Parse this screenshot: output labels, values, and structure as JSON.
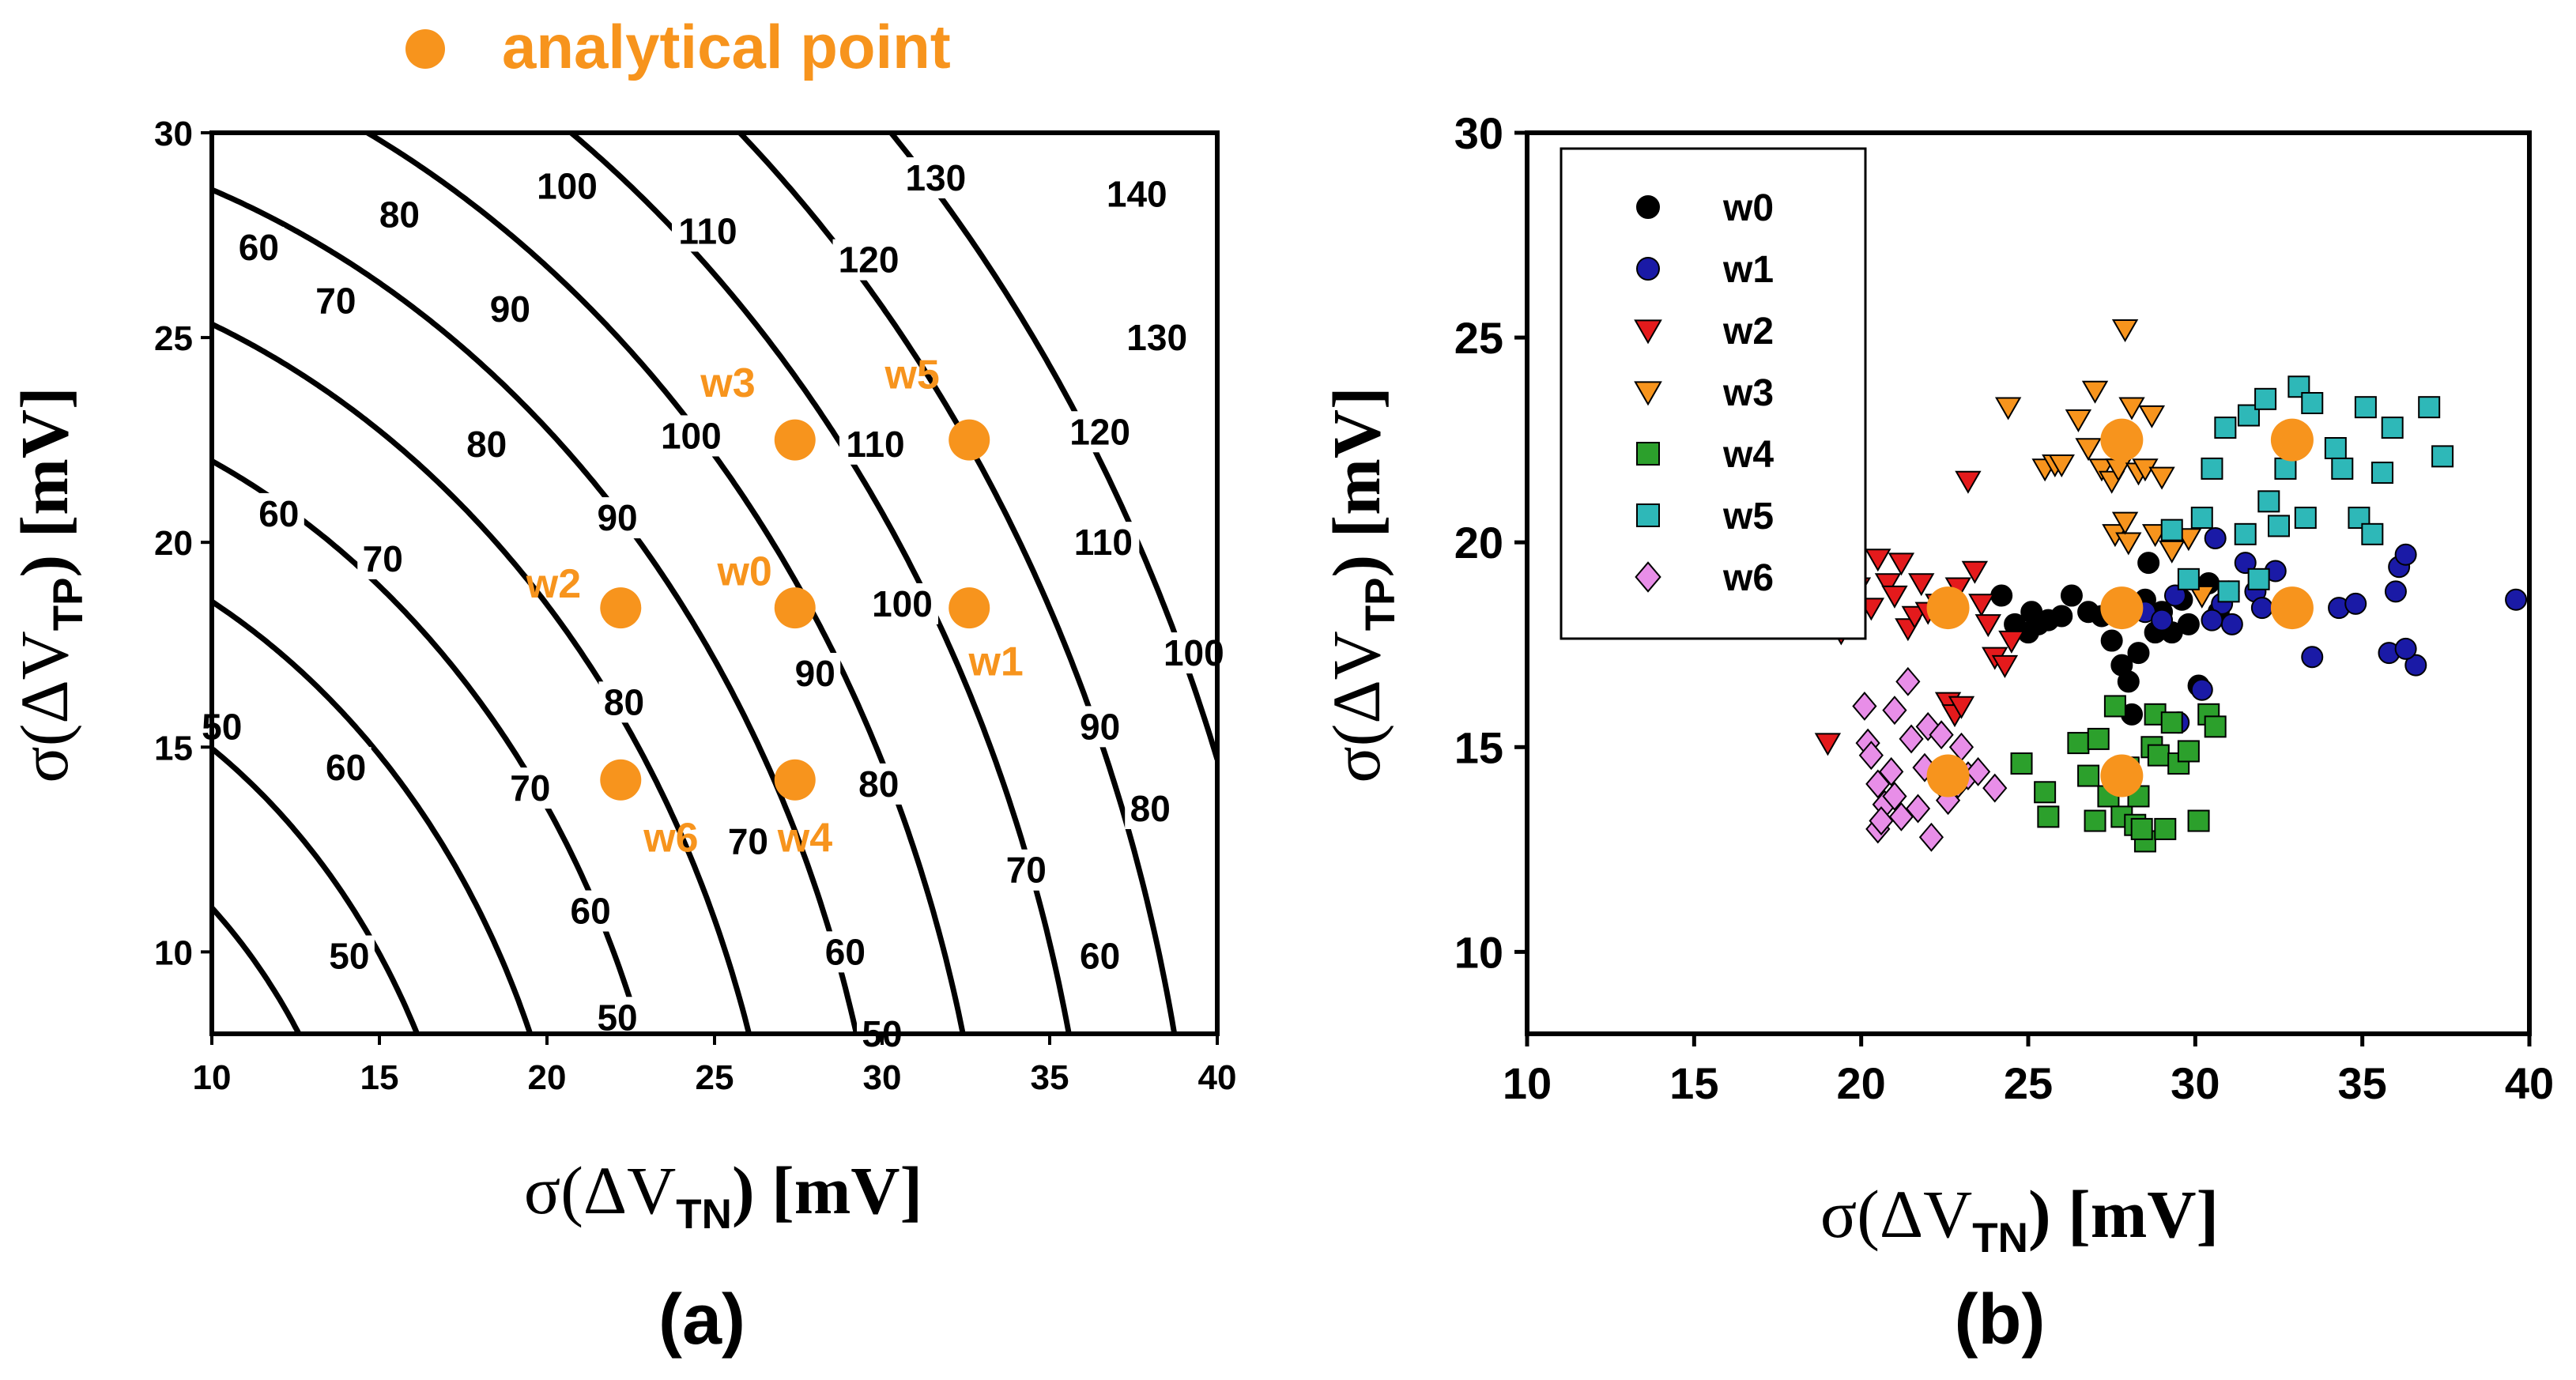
{
  "legend_top": {
    "label": "analytical point",
    "color": "#f7941d"
  },
  "analytical_color": "#f7941d",
  "chart_data": [
    {
      "type": "contour",
      "caption": "(a)",
      "xlabel": {
        "prefix": "σ(ΔV",
        "sub": "TN",
        "suffix": ") [mV]"
      },
      "ylabel": {
        "prefix": "σ(ΔV",
        "sub": "TP",
        "suffix": ") [mV]"
      },
      "xlim": [
        10,
        40
      ],
      "ylim": [
        8,
        30
      ],
      "xticks": [
        10,
        15,
        20,
        25,
        30,
        35,
        40
      ],
      "yticks": [
        10,
        15,
        20,
        25,
        30
      ],
      "contour_levels": [
        50,
        60,
        70,
        80,
        90,
        100,
        110,
        120,
        130,
        140
      ],
      "contour_labels": [
        {
          "text": "60",
          "x": 11.4,
          "y": 27.2
        },
        {
          "text": "80",
          "x": 15.6,
          "y": 28.0
        },
        {
          "text": "100",
          "x": 20.6,
          "y": 28.7
        },
        {
          "text": "110",
          "x": 24.8,
          "y": 27.6
        },
        {
          "text": "130",
          "x": 31.6,
          "y": 28.9
        },
        {
          "text": "140",
          "x": 37.6,
          "y": 28.5
        },
        {
          "text": "70",
          "x": 13.7,
          "y": 25.9
        },
        {
          "text": "90",
          "x": 18.9,
          "y": 25.7
        },
        {
          "text": "120",
          "x": 29.6,
          "y": 26.9
        },
        {
          "text": "130",
          "x": 38.2,
          "y": 25.0
        },
        {
          "text": "100",
          "x": 24.3,
          "y": 22.6
        },
        {
          "text": "110",
          "x": 29.8,
          "y": 22.4
        },
        {
          "text": "120",
          "x": 36.5,
          "y": 22.7
        },
        {
          "text": "80",
          "x": 18.2,
          "y": 22.4
        },
        {
          "text": "60",
          "x": 12.0,
          "y": 20.7
        },
        {
          "text": "90",
          "x": 22.1,
          "y": 20.6
        },
        {
          "text": "70",
          "x": 15.1,
          "y": 19.6
        },
        {
          "text": "110",
          "x": 36.6,
          "y": 20.0
        },
        {
          "text": "100",
          "x": 30.6,
          "y": 18.5
        },
        {
          "text": "100",
          "x": 39.3,
          "y": 17.3
        },
        {
          "text": "90",
          "x": 28.0,
          "y": 16.8
        },
        {
          "text": "90",
          "x": 36.5,
          "y": 15.5
        },
        {
          "text": "80",
          "x": 22.3,
          "y": 16.1
        },
        {
          "text": "50",
          "x": 10.3,
          "y": 15.5
        },
        {
          "text": "60",
          "x": 14.0,
          "y": 14.5
        },
        {
          "text": "70",
          "x": 19.5,
          "y": 14.0
        },
        {
          "text": "80",
          "x": 29.9,
          "y": 14.1
        },
        {
          "text": "80",
          "x": 38.0,
          "y": 13.5
        },
        {
          "text": "70",
          "x": 26.0,
          "y": 12.7
        },
        {
          "text": "70",
          "x": 34.3,
          "y": 12.0
        },
        {
          "text": "60",
          "x": 21.3,
          "y": 11.0
        },
        {
          "text": "60",
          "x": 28.9,
          "y": 10.0
        },
        {
          "text": "60",
          "x": 36.5,
          "y": 9.9
        },
        {
          "text": "50",
          "x": 14.1,
          "y": 9.9
        },
        {
          "text": "50",
          "x": 22.1,
          "y": 8.4
        },
        {
          "text": "50",
          "x": 30.0,
          "y": 8.0
        }
      ],
      "analytical_points": [
        {
          "name": "w0",
          "x": 27.4,
          "y": 18.4,
          "label_dx": -1.5,
          "label_dy": 0.9
        },
        {
          "name": "w1",
          "x": 32.6,
          "y": 18.4,
          "label_dx": 0.8,
          "label_dy": -1.3
        },
        {
          "name": "w2",
          "x": 22.2,
          "y": 18.4,
          "label_dx": -2.0,
          "label_dy": 0.6
        },
        {
          "name": "w3",
          "x": 27.4,
          "y": 22.5,
          "label_dx": -2.0,
          "label_dy": 1.4
        },
        {
          "name": "w4",
          "x": 27.4,
          "y": 14.2,
          "label_dx": 0.3,
          "label_dy": -1.4
        },
        {
          "name": "w5",
          "x": 32.6,
          "y": 22.5,
          "label_dx": -1.7,
          "label_dy": 1.6
        },
        {
          "name": "w6",
          "x": 22.2,
          "y": 14.2,
          "label_dx": 1.5,
          "label_dy": -1.4
        }
      ]
    },
    {
      "type": "scatter",
      "caption": "(b)",
      "xlabel": {
        "prefix": "σ(ΔV",
        "sub": "TN",
        "suffix": ") [mV]"
      },
      "ylabel": {
        "prefix": "σ(ΔV",
        "sub": "TP",
        "suffix": ") [mV]"
      },
      "xlim": [
        10,
        40
      ],
      "ylim": [
        8,
        30
      ],
      "xticks": [
        10,
        15,
        20,
        25,
        30,
        35,
        40
      ],
      "yticks": [
        10,
        15,
        20,
        25,
        30
      ],
      "legend_position": "top-left",
      "series": [
        {
          "name": "w0",
          "marker": "circle",
          "color": "#000000",
          "points": [
            [
              24.2,
              18.7
            ],
            [
              24.6,
              18.0
            ],
            [
              25.0,
              17.8
            ],
            [
              25.3,
              18.0
            ],
            [
              25.6,
              18.1
            ],
            [
              26.3,
              18.7
            ],
            [
              26.8,
              18.3
            ],
            [
              27.2,
              18.2
            ],
            [
              27.5,
              17.6
            ],
            [
              27.8,
              17.0
            ],
            [
              28.0,
              16.6
            ],
            [
              28.1,
              15.8
            ],
            [
              28.3,
              17.3
            ],
            [
              28.5,
              18.6
            ],
            [
              28.6,
              19.5
            ],
            [
              28.8,
              17.8
            ],
            [
              29.0,
              18.3
            ],
            [
              29.3,
              17.8
            ],
            [
              29.6,
              18.6
            ],
            [
              29.8,
              18.0
            ],
            [
              30.1,
              16.5
            ],
            [
              30.4,
              19.0
            ],
            [
              30.7,
              18.3
            ],
            [
              31.0,
              18.8
            ],
            [
              25.1,
              18.3
            ],
            [
              26.0,
              18.2
            ]
          ]
        },
        {
          "name": "w1",
          "marker": "circle",
          "color": "#1a1aa6",
          "points": [
            [
              28.5,
              18.3
            ],
            [
              29.0,
              18.1
            ],
            [
              29.5,
              15.6
            ],
            [
              30.2,
              16.4
            ],
            [
              30.6,
              20.1
            ],
            [
              30.8,
              18.5
            ],
            [
              31.1,
              18.0
            ],
            [
              31.5,
              19.5
            ],
            [
              31.8,
              18.8
            ],
            [
              32.0,
              18.4
            ],
            [
              32.4,
              19.3
            ],
            [
              32.9,
              18.6
            ],
            [
              33.5,
              17.2
            ],
            [
              34.3,
              18.4
            ],
            [
              34.8,
              18.5
            ],
            [
              35.8,
              17.3
            ],
            [
              36.0,
              18.8
            ],
            [
              36.1,
              19.4
            ],
            [
              36.3,
              19.7
            ],
            [
              36.6,
              17.0
            ],
            [
              36.3,
              17.4
            ],
            [
              39.6,
              18.6
            ],
            [
              30.5,
              18.1
            ],
            [
              29.4,
              18.7
            ]
          ]
        },
        {
          "name": "w2",
          "marker": "triangle-down",
          "color": "#e41a1c",
          "points": [
            [
              19.0,
              15.1
            ],
            [
              19.4,
              17.8
            ],
            [
              19.9,
              18.9
            ],
            [
              20.3,
              18.4
            ],
            [
              20.5,
              19.6
            ],
            [
              20.8,
              19.0
            ],
            [
              21.0,
              18.7
            ],
            [
              21.2,
              19.5
            ],
            [
              21.4,
              17.9
            ],
            [
              21.6,
              18.2
            ],
            [
              21.8,
              19.0
            ],
            [
              22.0,
              18.3
            ],
            [
              22.3,
              18.5
            ],
            [
              22.6,
              16.1
            ],
            [
              22.8,
              15.8
            ],
            [
              23.0,
              16.0
            ],
            [
              23.2,
              21.5
            ],
            [
              23.4,
              19.3
            ],
            [
              23.6,
              18.5
            ],
            [
              23.8,
              18.0
            ],
            [
              24.0,
              17.2
            ],
            [
              24.3,
              17.0
            ],
            [
              24.5,
              17.6
            ],
            [
              22.9,
              18.9
            ]
          ]
        },
        {
          "name": "w3",
          "marker": "triangle-down",
          "color": "#f7941d",
          "points": [
            [
              24.4,
              23.3
            ],
            [
              25.5,
              21.8
            ],
            [
              25.8,
              21.9
            ],
            [
              26.0,
              21.9
            ],
            [
              26.5,
              23.0
            ],
            [
              26.8,
              22.3
            ],
            [
              27.0,
              23.7
            ],
            [
              27.2,
              21.8
            ],
            [
              27.5,
              21.5
            ],
            [
              27.7,
              21.8
            ],
            [
              27.9,
              25.2
            ],
            [
              28.1,
              23.3
            ],
            [
              28.3,
              21.7
            ],
            [
              28.5,
              21.8
            ],
            [
              28.7,
              23.1
            ],
            [
              27.6,
              20.2
            ],
            [
              28.0,
              20.0
            ],
            [
              28.8,
              20.2
            ],
            [
              29.3,
              19.8
            ],
            [
              29.8,
              20.1
            ],
            [
              30.2,
              18.7
            ],
            [
              29.0,
              21.6
            ],
            [
              27.9,
              20.5
            ]
          ]
        },
        {
          "name": "w4",
          "marker": "square",
          "color": "#2ca02c",
          "points": [
            [
              24.8,
              14.6
            ],
            [
              25.5,
              13.9
            ],
            [
              25.6,
              13.3
            ],
            [
              26.5,
              15.1
            ],
            [
              26.8,
              14.3
            ],
            [
              27.0,
              13.2
            ],
            [
              27.1,
              15.2
            ],
            [
              27.4,
              13.8
            ],
            [
              27.6,
              16.0
            ],
            [
              27.8,
              13.3
            ],
            [
              28.0,
              14.5
            ],
            [
              28.2,
              13.1
            ],
            [
              28.3,
              13.8
            ],
            [
              28.5,
              12.7
            ],
            [
              28.7,
              15.0
            ],
            [
              28.8,
              15.8
            ],
            [
              28.9,
              14.8
            ],
            [
              29.1,
              13.0
            ],
            [
              29.3,
              15.6
            ],
            [
              29.5,
              14.6
            ],
            [
              29.8,
              14.9
            ],
            [
              30.1,
              13.2
            ],
            [
              30.4,
              15.8
            ],
            [
              30.6,
              15.5
            ],
            [
              28.4,
              13.0
            ]
          ]
        },
        {
          "name": "w5",
          "marker": "square",
          "color": "#2eb8b8",
          "points": [
            [
              29.3,
              20.3
            ],
            [
              29.8,
              19.1
            ],
            [
              30.2,
              20.6
            ],
            [
              30.5,
              21.8
            ],
            [
              30.9,
              22.8
            ],
            [
              31.0,
              18.8
            ],
            [
              31.5,
              20.2
            ],
            [
              31.6,
              23.1
            ],
            [
              31.9,
              19.1
            ],
            [
              32.1,
              23.5
            ],
            [
              32.2,
              21.0
            ],
            [
              32.5,
              20.4
            ],
            [
              32.7,
              21.8
            ],
            [
              33.1,
              23.8
            ],
            [
              33.3,
              20.6
            ],
            [
              33.5,
              23.4
            ],
            [
              34.2,
              22.3
            ],
            [
              34.4,
              21.8
            ],
            [
              34.9,
              20.6
            ],
            [
              35.1,
              23.3
            ],
            [
              35.3,
              20.2
            ],
            [
              35.6,
              21.7
            ],
            [
              35.9,
              22.8
            ],
            [
              37.0,
              23.3
            ],
            [
              37.4,
              22.1
            ],
            [
              32.9,
              22.6
            ]
          ]
        },
        {
          "name": "w6",
          "marker": "diamond",
          "color": "#e88ee8",
          "points": [
            [
              20.1,
              16.0
            ],
            [
              20.2,
              15.1
            ],
            [
              20.3,
              14.8
            ],
            [
              20.5,
              14.1
            ],
            [
              20.5,
              13.0
            ],
            [
              20.7,
              13.6
            ],
            [
              20.9,
              14.4
            ],
            [
              21.0,
              13.8
            ],
            [
              21.2,
              13.3
            ],
            [
              21.4,
              16.6
            ],
            [
              21.5,
              15.2
            ],
            [
              21.7,
              13.5
            ],
            [
              21.9,
              14.5
            ],
            [
              22.0,
              15.5
            ],
            [
              22.1,
              12.8
            ],
            [
              22.4,
              15.3
            ],
            [
              22.5,
              14.0
            ],
            [
              22.6,
              13.7
            ],
            [
              22.9,
              14.1
            ],
            [
              23.0,
              15.0
            ],
            [
              23.2,
              14.3
            ],
            [
              23.5,
              14.4
            ],
            [
              24.0,
              14.0
            ],
            [
              21.0,
              15.9
            ],
            [
              20.6,
              13.2
            ]
          ]
        }
      ],
      "analytical_points": [
        {
          "name": "w0",
          "x": 27.8,
          "y": 18.4
        },
        {
          "name": "w1",
          "x": 32.9,
          "y": 18.4
        },
        {
          "name": "w2",
          "x": 22.6,
          "y": 18.4
        },
        {
          "name": "w3",
          "x": 27.8,
          "y": 22.5
        },
        {
          "name": "w4",
          "x": 27.8,
          "y": 14.3
        },
        {
          "name": "w5",
          "x": 32.9,
          "y": 22.5
        },
        {
          "name": "w6",
          "x": 22.6,
          "y": 14.3
        }
      ]
    }
  ]
}
